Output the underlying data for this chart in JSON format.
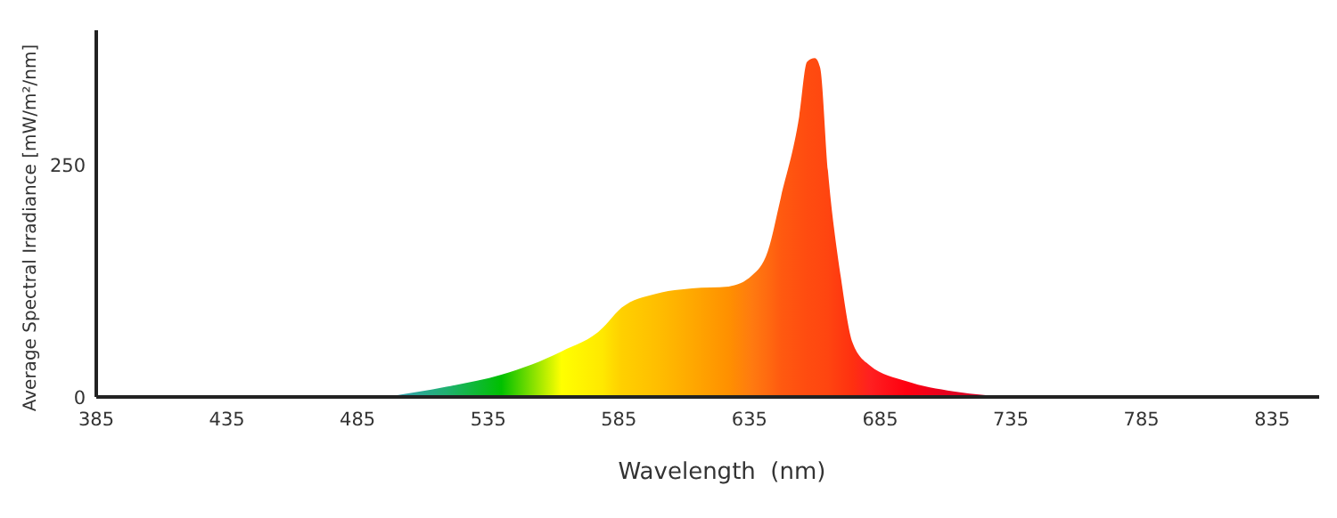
{
  "chart_data": {
    "type": "area",
    "xlabel": "Wavelength  (nm)",
    "ylabel": "Average Spectral Irradiance [mW/m²/nm]",
    "xlim": [
      385,
      853
    ],
    "ylim": [
      0,
      395
    ],
    "xticks": [
      385,
      435,
      485,
      535,
      585,
      635,
      685,
      735,
      785,
      835
    ],
    "yticks": [
      0,
      250
    ],
    "grid": false,
    "series": [
      {
        "x": [
          496,
          519,
          540,
          563,
          579,
          581,
          586,
          599,
          613,
          627,
          636,
          642,
          647,
          654,
          657,
          660,
          662,
          665,
          670,
          674.5,
          681,
          695,
          713,
          738
        ],
        "values": [
          0,
          11,
          24,
          49,
          75,
          81,
          96,
          111,
          117,
          119,
          131,
          157,
          215,
          302,
          361,
          365,
          355,
          244,
          128,
          58,
          34,
          17,
          6,
          0
        ],
        "colors": [
          "#3a9fc0",
          "#1fb070",
          "#00c000",
          "#ffff00",
          "#ffe800",
          "#ffe000",
          "#ffd000",
          "#ffbf00",
          "#ffa800",
          "#ff9000",
          "#ff7a10",
          "#ff6a10",
          "#ff5a10",
          "#ff5010",
          "#ff4c10",
          "#ff4a10",
          "#ff4810",
          "#ff4510",
          "#ff3a10",
          "#ff3010",
          "#ff2020",
          "#ff0010",
          "#e00020",
          "#c00030"
        ]
      }
    ]
  }
}
